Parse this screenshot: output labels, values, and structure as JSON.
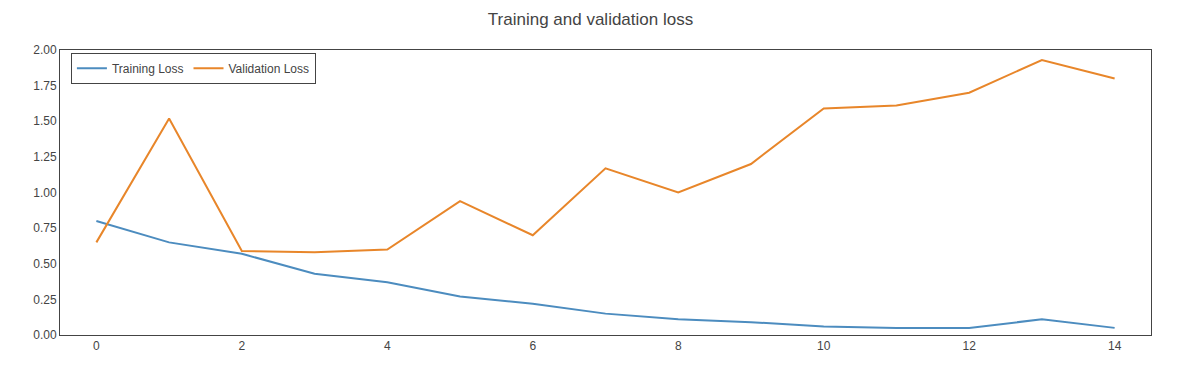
{
  "chart_data": {
    "type": "line",
    "title": "Training and validation loss",
    "x": [
      0,
      1,
      2,
      3,
      4,
      5,
      6,
      7,
      8,
      9,
      10,
      11,
      12,
      13,
      14
    ],
    "series": [
      {
        "name": "Training Loss",
        "color": "#4C8CBF",
        "values": [
          0.8,
          0.65,
          0.57,
          0.43,
          0.37,
          0.27,
          0.22,
          0.15,
          0.11,
          0.09,
          0.06,
          0.05,
          0.05,
          0.11,
          0.05
        ]
      },
      {
        "name": "Validation Loss",
        "color": "#E8862A",
        "values": [
          0.65,
          1.52,
          0.59,
          0.58,
          0.6,
          0.94,
          0.7,
          1.17,
          1.0,
          1.2,
          1.59,
          1.61,
          1.7,
          1.93,
          1.8
        ]
      }
    ],
    "xlim": [
      -0.5,
      14.5
    ],
    "ylim": [
      0.0,
      2.0
    ],
    "xticks": [
      0,
      2,
      4,
      6,
      8,
      10,
      12,
      14
    ],
    "yticks": [
      {
        "value": 0,
        "label": "0.00"
      },
      0.25,
      {
        "value": 0.5,
        "label": "0.50"
      },
      0.75,
      {
        "value": 1,
        "label": "1.00"
      },
      1.25,
      {
        "value": 1.5,
        "label": "1.50"
      },
      1.75,
      {
        "value": 2,
        "label": "2.00"
      }
    ],
    "grid": false,
    "legend": "upper left"
  }
}
